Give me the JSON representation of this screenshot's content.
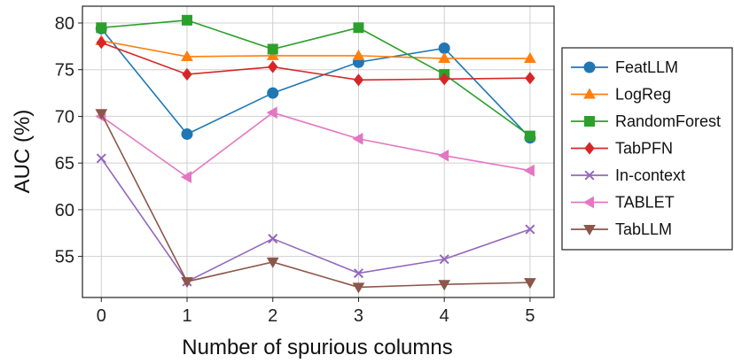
{
  "chart_data": {
    "type": "line",
    "title": "",
    "xlabel": "Number of spurious columns",
    "ylabel": "AUC (%)",
    "x": [
      0,
      1,
      2,
      3,
      4,
      5
    ],
    "xticks": [
      "0",
      "1",
      "2",
      "3",
      "4",
      "5"
    ],
    "yticks": [
      "55",
      "60",
      "65",
      "70",
      "75",
      "80"
    ],
    "xlim": [
      -0.22,
      5.28
    ],
    "ylim": [
      50.6,
      81.8
    ],
    "grid": true,
    "legend_position": "right",
    "series": [
      {
        "name": "FeatLLM",
        "color": "#1f77b4",
        "marker": "circle",
        "values": [
          79.4,
          68.1,
          72.5,
          75.8,
          77.3,
          67.7
        ]
      },
      {
        "name": "LogReg",
        "color": "#ff7f0e",
        "marker": "triangle-up",
        "values": [
          78.1,
          76.4,
          76.5,
          76.5,
          76.2,
          76.2
        ]
      },
      {
        "name": "RandomForest",
        "color": "#2ca02c",
        "marker": "square",
        "values": [
          79.5,
          80.3,
          77.2,
          79.5,
          74.5,
          67.9
        ]
      },
      {
        "name": "TabPFN",
        "color": "#d62728",
        "marker": "diamond",
        "values": [
          77.9,
          74.5,
          75.3,
          73.9,
          74.0,
          74.1
        ]
      },
      {
        "name": "In-context",
        "color": "#9467bd",
        "marker": "x",
        "values": [
          65.5,
          52.3,
          56.9,
          53.2,
          54.7,
          57.9
        ]
      },
      {
        "name": "TABLET",
        "color": "#e377c2",
        "marker": "triangle-left",
        "values": [
          70.0,
          63.5,
          70.4,
          67.6,
          65.8,
          64.2
        ]
      },
      {
        "name": "TabLLM",
        "color": "#8c564b",
        "marker": "triangle-down",
        "values": [
          70.3,
          52.3,
          54.4,
          51.7,
          52.0,
          52.2
        ]
      }
    ]
  }
}
